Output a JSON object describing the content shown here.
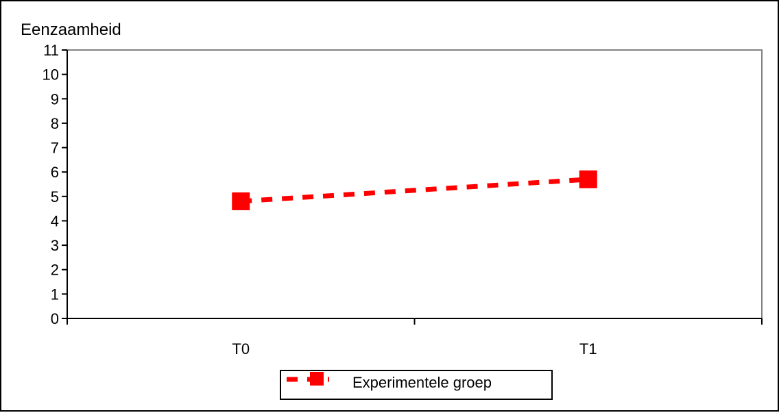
{
  "chart_data": {
    "type": "line",
    "title": "",
    "ylabel": "Eenzaamheid",
    "xlabel": "",
    "categories": [
      "T0",
      "T1"
    ],
    "ylim": [
      0,
      11
    ],
    "yticks": [
      "0",
      "1",
      "2",
      "3",
      "4",
      "5",
      "6",
      "7",
      "8",
      "9",
      "10",
      "11"
    ],
    "grid": false,
    "legend_position": "bottom",
    "series": [
      {
        "name": "Experimentele groep",
        "values": [
          4.8,
          5.7
        ],
        "color": "#ff0000",
        "line_style": "dashed",
        "marker": "square"
      }
    ]
  }
}
